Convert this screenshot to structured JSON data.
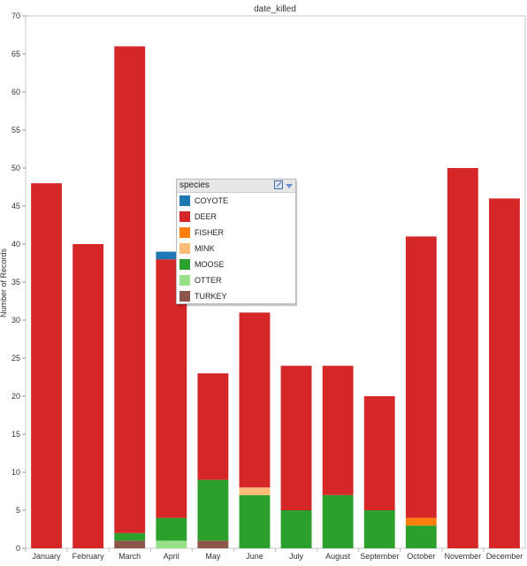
{
  "chart_data": {
    "type": "bar",
    "stacked": true,
    "title": "date_killed",
    "ylabel": "Number of Records",
    "xlabel": "",
    "ylim": [
      0,
      70
    ],
    "yticks": [
      0,
      5,
      10,
      15,
      20,
      25,
      30,
      35,
      40,
      45,
      50,
      55,
      60,
      65,
      70
    ],
    "grid": false,
    "legend_position": "floating-center",
    "categories": [
      "January",
      "February",
      "March",
      "April",
      "May",
      "June",
      "July",
      "August",
      "September",
      "October",
      "November",
      "December"
    ],
    "series": [
      {
        "name": "TURKEY",
        "color": "#8c564b",
        "values": [
          0,
          0,
          1,
          0,
          1,
          0,
          0,
          0,
          0,
          0,
          0,
          0
        ]
      },
      {
        "name": "OTTER",
        "color": "#98df8a",
        "values": [
          0,
          0,
          0,
          1,
          0,
          0,
          0,
          0,
          0,
          0,
          0,
          0
        ]
      },
      {
        "name": "MOOSE",
        "color": "#2ca02c",
        "values": [
          0,
          0,
          1,
          3,
          8,
          7,
          5,
          7,
          5,
          3,
          0,
          0
        ]
      },
      {
        "name": "MINK",
        "color": "#ffbb78",
        "values": [
          0,
          0,
          0,
          0,
          0,
          1,
          0,
          0,
          0,
          0,
          0,
          0
        ]
      },
      {
        "name": "FISHER",
        "color": "#ff7f0e",
        "values": [
          0,
          0,
          0,
          0,
          0,
          0,
          0,
          0,
          0,
          1,
          0,
          0
        ]
      },
      {
        "name": "DEER",
        "color": "#d62728",
        "values": [
          48,
          40,
          64,
          34,
          14,
          23,
          19,
          17,
          15,
          37,
          50,
          46
        ]
      },
      {
        "name": "COYOTE",
        "color": "#1f77b4",
        "values": [
          0,
          0,
          0,
          1,
          0,
          0,
          0,
          0,
          0,
          0,
          0,
          0
        ]
      }
    ]
  },
  "legend": {
    "title": "species",
    "items": [
      {
        "label": "COYOTE",
        "color": "#1f77b4"
      },
      {
        "label": "DEER",
        "color": "#d62728"
      },
      {
        "label": "FISHER",
        "color": "#ff7f0e"
      },
      {
        "label": "MINK",
        "color": "#ffbb78"
      },
      {
        "label": "MOOSE",
        "color": "#2ca02c"
      },
      {
        "label": "OTTER",
        "color": "#98df8a"
      },
      {
        "label": "TURKEY",
        "color": "#8c564b"
      }
    ]
  }
}
